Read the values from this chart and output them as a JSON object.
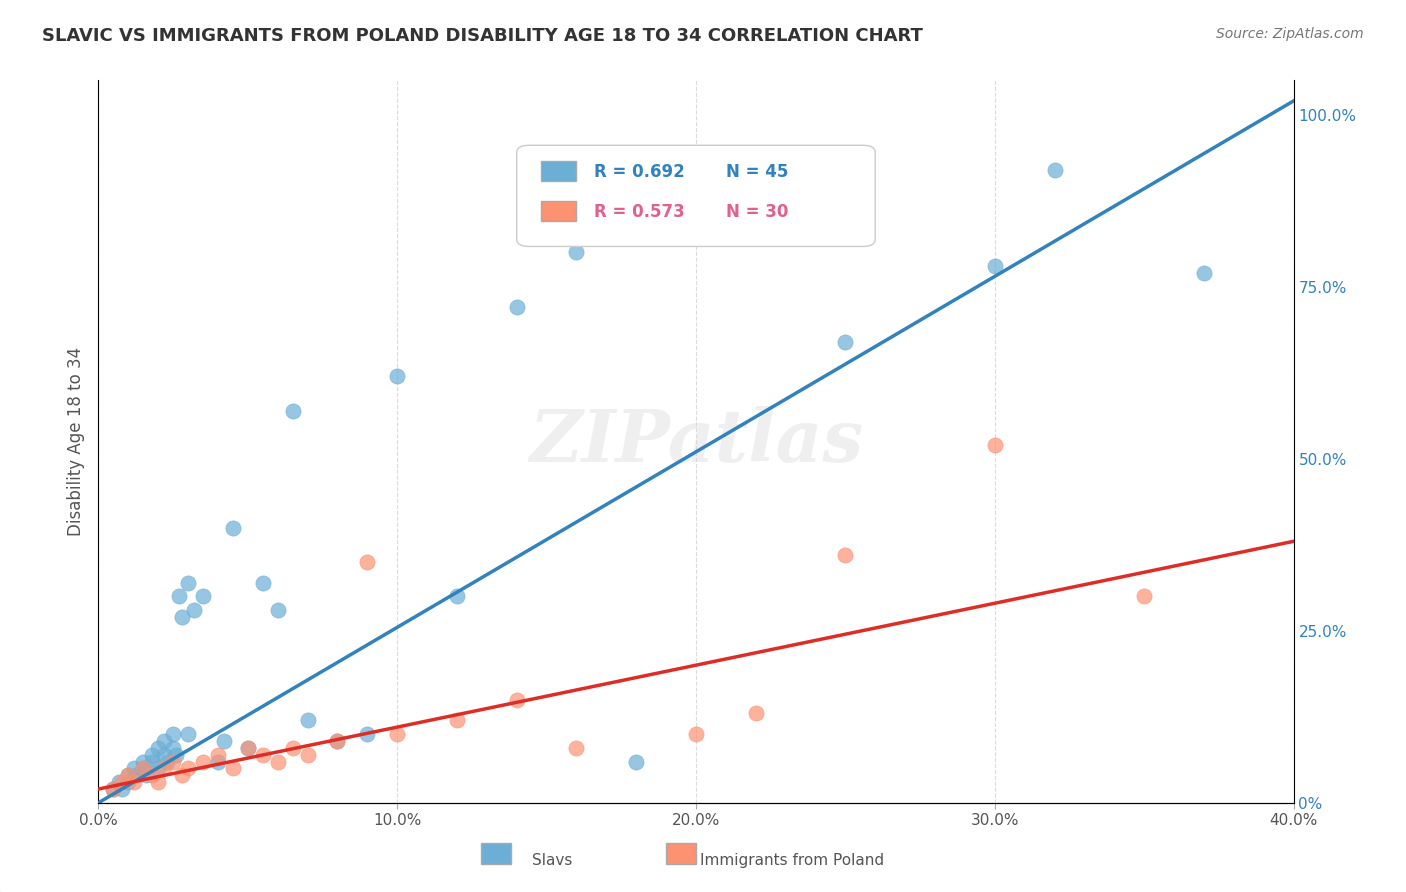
{
  "title": "SLAVIC VS IMMIGRANTS FROM POLAND DISABILITY AGE 18 TO 34 CORRELATION CHART",
  "source": "Source: ZipAtlas.com",
  "xlabel": "",
  "ylabel": "Disability Age 18 to 34",
  "watermark": "ZIPatlas",
  "xmin": 0.0,
  "xmax": 0.4,
  "ymin": 0.0,
  "ymax": 1.05,
  "xtick_labels": [
    "0.0%",
    "10.0%",
    "20.0%",
    "30.0%",
    "40.0%"
  ],
  "xtick_values": [
    0.0,
    0.1,
    0.2,
    0.3,
    0.4
  ],
  "ytick_labels": [
    "0%",
    "25.0%",
    "50.0%",
    "75.0%",
    "100.0%"
  ],
  "ytick_values": [
    0.0,
    0.25,
    0.5,
    0.75,
    1.0
  ],
  "legend_blue_r": "R = 0.692",
  "legend_blue_n": "N = 45",
  "legend_pink_r": "R = 0.573",
  "legend_pink_n": "N = 30",
  "blue_color": "#6baed6",
  "blue_line_color": "#3182bd",
  "pink_color": "#fc9272",
  "pink_line_color": "#de2d26",
  "blue_scatter_x": [
    0.005,
    0.007,
    0.008,
    0.01,
    0.01,
    0.012,
    0.013,
    0.015,
    0.015,
    0.016,
    0.018,
    0.018,
    0.02,
    0.02,
    0.022,
    0.022,
    0.023,
    0.025,
    0.025,
    0.026,
    0.027,
    0.028,
    0.03,
    0.03,
    0.032,
    0.035,
    0.04,
    0.042,
    0.045,
    0.05,
    0.055,
    0.06,
    0.065,
    0.07,
    0.08,
    0.09,
    0.1,
    0.12,
    0.14,
    0.16,
    0.18,
    0.25,
    0.3,
    0.32,
    0.37
  ],
  "blue_scatter_y": [
    0.02,
    0.03,
    0.02,
    0.04,
    0.03,
    0.05,
    0.04,
    0.06,
    0.05,
    0.04,
    0.07,
    0.06,
    0.08,
    0.05,
    0.09,
    0.07,
    0.06,
    0.08,
    0.1,
    0.07,
    0.3,
    0.27,
    0.32,
    0.1,
    0.28,
    0.3,
    0.06,
    0.09,
    0.4,
    0.08,
    0.32,
    0.28,
    0.57,
    0.12,
    0.09,
    0.1,
    0.62,
    0.3,
    0.72,
    0.8,
    0.06,
    0.67,
    0.78,
    0.92,
    0.77
  ],
  "pink_scatter_x": [
    0.005,
    0.008,
    0.01,
    0.012,
    0.015,
    0.018,
    0.02,
    0.022,
    0.025,
    0.028,
    0.03,
    0.035,
    0.04,
    0.045,
    0.05,
    0.055,
    0.06,
    0.065,
    0.07,
    0.08,
    0.09,
    0.1,
    0.12,
    0.14,
    0.16,
    0.2,
    0.22,
    0.25,
    0.3,
    0.35
  ],
  "pink_scatter_y": [
    0.02,
    0.03,
    0.04,
    0.03,
    0.05,
    0.04,
    0.03,
    0.05,
    0.06,
    0.04,
    0.05,
    0.06,
    0.07,
    0.05,
    0.08,
    0.07,
    0.06,
    0.08,
    0.07,
    0.09,
    0.35,
    0.1,
    0.12,
    0.15,
    0.08,
    0.1,
    0.13,
    0.36,
    0.52,
    0.3
  ],
  "blue_line_x": [
    0.0,
    0.4
  ],
  "blue_line_y": [
    0.0,
    1.02
  ],
  "pink_line_x": [
    0.0,
    0.4
  ],
  "pink_line_y": [
    0.02,
    0.38
  ],
  "background_color": "#ffffff",
  "grid_color": "#cccccc",
  "title_color": "#333333",
  "axis_label_color": "#555555",
  "right_ytick_color_1": "#3182bd",
  "right_ytick_color_2": "#de2d26"
}
